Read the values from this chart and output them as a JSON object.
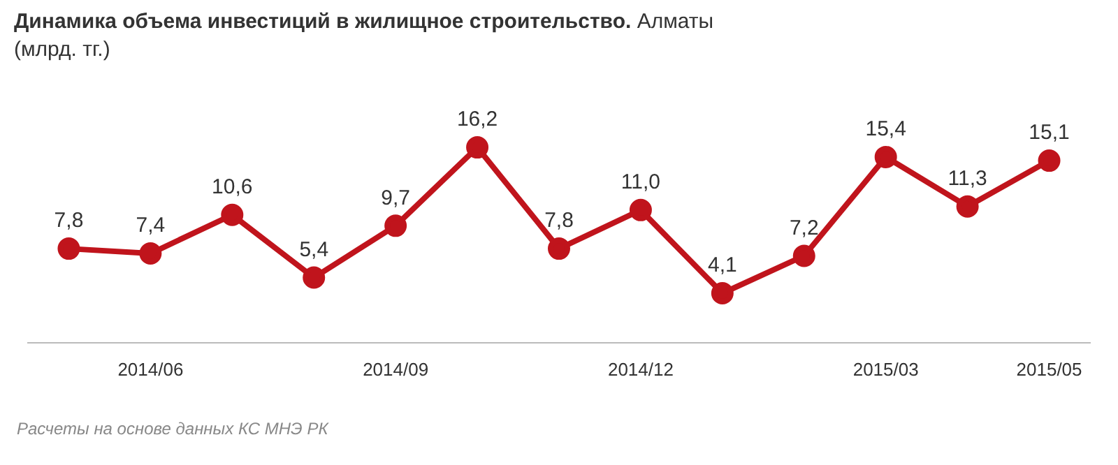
{
  "chart_data": {
    "type": "line",
    "title": "Динамика объема инвестиций в жилищное строительство.",
    "subtitle": "Алматы",
    "ylabel": "(млрд. тг.)",
    "categories": [
      null,
      "2014/06",
      null,
      null,
      "2014/09",
      null,
      null,
      "2014/12",
      null,
      null,
      "2015/03",
      null,
      "2015/05"
    ],
    "series": [
      {
        "color": "#c0141c",
        "values": [
          7.8,
          7.4,
          10.6,
          5.4,
          9.7,
          16.2,
          7.8,
          11.0,
          4.1,
          7.2,
          15.4,
          11.3,
          15.1
        ],
        "value_labels": [
          "7,8",
          "7,4",
          "10,6",
          "5,4",
          "9,7",
          "16,2",
          "7,8",
          "11,0",
          "4,1",
          "7,2",
          "15,4",
          "11,3",
          "15,1"
        ]
      }
    ],
    "marker": "circle",
    "line_style": "solid",
    "grid": false,
    "legend": false,
    "tick_labels": "x",
    "annotations": [
      "Расчеты на основе данных КС МНЭ РК"
    ]
  }
}
